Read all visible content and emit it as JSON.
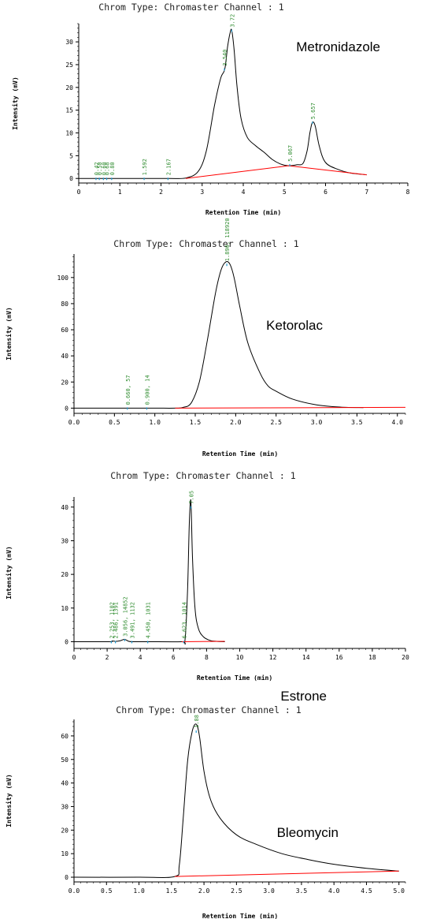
{
  "colors": {
    "trace": "#000000",
    "baseline": "#ff0000",
    "annotation": "#2e8b2e",
    "marker": "#1f9bd1",
    "axis": "#000000"
  },
  "chart_data": [
    {
      "type": "line",
      "title": "Chrom Type: Chromaster Channel : 1",
      "compound": "Metronidazole",
      "xlabel": "Retention Time (min)",
      "ylabel": "Intensity (mV)",
      "xlim": [
        0,
        8
      ],
      "ylim": [
        -1,
        34
      ],
      "xticks": [
        "0",
        "1",
        "2",
        "3",
        "4",
        "5",
        "6",
        "7",
        "8"
      ],
      "yticks": [
        "0",
        "5",
        "10",
        "15",
        "20",
        "25",
        "30"
      ],
      "peak_labels": [
        {
          "x": 0.42,
          "y": 0,
          "text": "0.42"
        },
        {
          "x": 0.5,
          "y": 0,
          "text": "0.50"
        },
        {
          "x": 0.6,
          "y": 0,
          "text": "0.60"
        },
        {
          "x": 0.68,
          "y": 0,
          "text": "0.68"
        },
        {
          "x": 0.8,
          "y": 0,
          "text": "0.80"
        },
        {
          "x": 1.59,
          "y": 0,
          "text": "1.592"
        },
        {
          "x": 2.17,
          "y": 0,
          "text": "2.167"
        },
        {
          "x": 3.54,
          "y": 24,
          "text": "3.540"
        },
        {
          "x": 3.72,
          "y": 32.5,
          "text": "3.72"
        },
        {
          "x": 5.13,
          "y": 3,
          "text": "5.067"
        },
        {
          "x": 5.68,
          "y": 12.3,
          "text": "5.657"
        }
      ],
      "series": [
        {
          "x": [
            0,
            0.3,
            0.8,
            1.6,
            2.2,
            2.6,
            2.9,
            3.1,
            3.3,
            3.45,
            3.55,
            3.62,
            3.68,
            3.72,
            3.78,
            3.85,
            3.95,
            4.1,
            4.3,
            4.5,
            4.7,
            4.9,
            5.1,
            5.3,
            5.45,
            5.55,
            5.62,
            5.68,
            5.75,
            5.85,
            6.0,
            6.3,
            6.6,
            7.0
          ],
          "y": [
            0,
            0,
            0,
            0,
            0,
            0.1,
            1.5,
            6,
            16,
            22,
            24,
            29,
            32,
            32.5,
            28,
            20,
            13,
            9,
            7.2,
            5.8,
            4.2,
            3.2,
            2.8,
            3,
            3.3,
            6,
            10,
            12.3,
            11.5,
            7,
            3.5,
            2,
            1.2,
            0.8
          ]
        },
        {
          "x": [
            2.6,
            5.1,
            7.0
          ],
          "y": [
            0,
            2.8,
            0.8
          ]
        }
      ]
    },
    {
      "type": "line",
      "title": "Chrom Type: Chromaster Channel : 1",
      "compound": "Ketorolac",
      "xlabel": "Retention Time (min)",
      "ylabel": "Intensity (mV)",
      "xlim": [
        0,
        4.1
      ],
      "ylim": [
        -4,
        118
      ],
      "xticks": [
        "0.0",
        "0.5",
        "1.0",
        "1.5",
        "2.0",
        "2.5",
        "3.0",
        "3.5",
        "4.0"
      ],
      "yticks": [
        "0",
        "20",
        "40",
        "60",
        "80",
        "100"
      ],
      "peak_labels": [
        {
          "x": 0.66,
          "y": 0,
          "text": "0.660, 57"
        },
        {
          "x": 0.9,
          "y": 0,
          "text": "0.900, 14"
        },
        {
          "x": 1.89,
          "y": 110,
          "text": "1.890, 118920"
        }
      ],
      "series": [
        {
          "x": [
            0,
            0.6,
            1.0,
            1.25,
            1.35,
            1.45,
            1.55,
            1.65,
            1.75,
            1.82,
            1.88,
            1.93,
            1.98,
            2.05,
            2.15,
            2.3,
            2.4,
            2.5,
            2.7,
            3.0,
            3.3,
            3.58
          ],
          "y": [
            0,
            0,
            0,
            0,
            0.5,
            4,
            20,
            52,
            88,
            106,
            112,
            110,
            100,
            78,
            50,
            27,
            17,
            13,
            7,
            2.5,
            0.8,
            0.4
          ]
        },
        {
          "x": [
            1.25,
            4.1
          ],
          "y": [
            0,
            0.6
          ]
        }
      ]
    },
    {
      "type": "line",
      "title": "Chrom Type: Chromaster Channel : 1",
      "compound": "Estrone",
      "xlabel": "Retention Time (min)",
      "ylabel": "Intensity (mV)",
      "xlim": [
        0,
        20
      ],
      "ylim": [
        -2,
        43
      ],
      "xticks": [
        "0",
        "2",
        "4",
        "6",
        "8",
        "10",
        "12",
        "14",
        "16",
        "18",
        "20"
      ],
      "yticks": [
        "0",
        "10",
        "20",
        "30",
        "40"
      ],
      "peak_labels": [
        {
          "x": 2.25,
          "y": 0,
          "text": "2.253, 1102"
        },
        {
          "x": 2.5,
          "y": 0,
          "text": "2.486, 1391"
        },
        {
          "x": 3.06,
          "y": 0.6,
          "text": "3.056, 14852"
        },
        {
          "x": 3.49,
          "y": 0,
          "text": "3.491, 1132"
        },
        {
          "x": 4.45,
          "y": 0,
          "text": "4.450, 1031"
        },
        {
          "x": 6.62,
          "y": 0,
          "text": "6.623, 1014"
        },
        {
          "x": 7.05,
          "y": 40,
          "text": "7.05"
        }
      ],
      "series": [
        {
          "x": [
            0,
            2.1,
            2.3,
            2.5,
            2.8,
            3.05,
            3.3,
            3.6,
            4.5,
            6.5,
            6.7,
            6.85,
            6.95,
            7.02,
            7.07,
            7.15,
            7.3,
            7.5,
            7.8,
            8.2,
            8.6,
            9.1
          ],
          "y": [
            0,
            0,
            0.2,
            0.1,
            0.3,
            0.7,
            0.1,
            0,
            0,
            0,
            0.5,
            15,
            34,
            41.5,
            40,
            25,
            10,
            4,
            1.5,
            0.4,
            0.1,
            0
          ]
        },
        {
          "x": [
            6.5,
            9.1
          ],
          "y": [
            0,
            0.1
          ]
        }
      ]
    },
    {
      "type": "line",
      "title": "Chrom Type: Chromaster Channel : 1",
      "compound": "Bleomycin",
      "xlabel": "Retention Time (min)",
      "ylabel": "Intensity (mV)",
      "xlim": [
        0,
        5.1
      ],
      "ylim": [
        -2,
        67
      ],
      "xticks": [
        "0.0",
        "0.5",
        "1.0",
        "1.5",
        "2.0",
        "2.5",
        "3.0",
        "3.5",
        "4.0",
        "4.5",
        "5.0"
      ],
      "yticks": [
        "0",
        "10",
        "20",
        "30",
        "40",
        "50",
        "60"
      ],
      "peak_labels": [
        {
          "x": 1.88,
          "y": 62,
          "text": "1.88"
        }
      ],
      "series": [
        {
          "x": [
            0,
            1.0,
            1.55,
            1.62,
            1.68,
            1.75,
            1.82,
            1.88,
            1.93,
            2.0,
            2.1,
            2.25,
            2.5,
            2.8,
            3.2,
            3.6,
            4.0,
            4.5,
            5.0
          ],
          "y": [
            0,
            0,
            0.3,
            5,
            25,
            50,
            62,
            65,
            60,
            45,
            33,
            25,
            18,
            14,
            10,
            7.5,
            5.5,
            3.8,
            2.6
          ]
        },
        {
          "x": [
            1.55,
            5.0
          ],
          "y": [
            0.3,
            2.6
          ]
        }
      ]
    }
  ]
}
